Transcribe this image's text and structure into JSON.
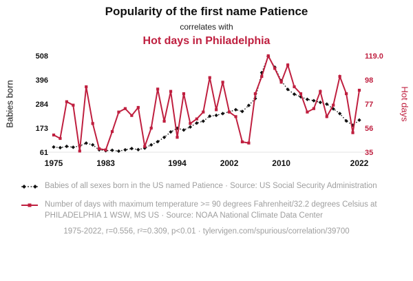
{
  "colors": {
    "accent": "#bf1f3f",
    "black": "#111111",
    "gray": "#9e9e9e"
  },
  "chart_data": {
    "type": "line",
    "title": "Popularity of the first name Patience",
    "subtitle": "correlates with",
    "title2": "Hot days in Philadelphia",
    "x": [
      1975,
      1976,
      1977,
      1978,
      1979,
      1980,
      1981,
      1982,
      1983,
      1984,
      1985,
      1986,
      1987,
      1988,
      1989,
      1990,
      1991,
      1992,
      1993,
      1994,
      1995,
      1996,
      1997,
      1998,
      1999,
      2000,
      2001,
      2002,
      2003,
      2004,
      2005,
      2006,
      2007,
      2008,
      2009,
      2010,
      2011,
      2012,
      2013,
      2014,
      2015,
      2016,
      2017,
      2018,
      2019,
      2020,
      2021,
      2022
    ],
    "x_ticks": [
      1975,
      1983,
      1994,
      2002,
      2010,
      2022
    ],
    "left_axis": {
      "label": "Babies born",
      "ticks": [
        61,
        173,
        284,
        396,
        508
      ],
      "range": [
        61,
        508
      ]
    },
    "right_axis": {
      "label": "Hot days",
      "ticks": [
        "35",
        "56",
        "77",
        "98",
        "119.0"
      ],
      "tick_values": [
        35,
        56,
        77,
        98,
        119
      ],
      "range": [
        35,
        119
      ]
    },
    "series": [
      {
        "name": "Babies of all sexes born in the US named Patience",
        "axis": "left",
        "color": "#111111",
        "style": "dotted-diamond",
        "values": [
          85,
          82,
          88,
          84,
          90,
          103,
          95,
          72,
          68,
          70,
          66,
          72,
          78,
          73,
          80,
          95,
          110,
          130,
          155,
          172,
          164,
          178,
          196,
          205,
          228,
          232,
          240,
          248,
          258,
          250,
          278,
          310,
          430,
          505,
          455,
          392,
          352,
          330,
          318,
          306,
          300,
          292,
          284,
          262,
          240,
          206,
          186,
          210
        ]
      },
      {
        "name": "Number of days with maximum temperature >= 90 degrees Fahrenheit at PHILADELPHIA 1 WSW, MS US",
        "axis": "right",
        "color": "#bf1f3f",
        "style": "solid-square",
        "values": [
          50,
          47,
          79,
          76,
          36,
          92,
          60,
          38,
          37,
          53,
          70,
          73,
          67,
          74,
          40,
          56,
          90,
          62,
          88,
          48,
          86,
          60,
          64,
          70,
          100,
          72,
          96,
          70,
          66,
          44,
          43,
          86,
          101,
          119,
          108,
          96,
          111,
          92,
          86,
          70,
          73,
          88,
          66,
          76,
          101,
          86,
          52,
          89
        ]
      }
    ]
  },
  "legend": [
    {
      "label": "Babies of all sexes born in the US named Patience · Source: US Social Security Administration"
    },
    {
      "label": "Number of days with maximum temperature >= 90 degrees Fahrenheit/32.2 degrees Celsius at PHILADELPHIA 1 WSW, MS US · Source: NOAA National Climate Data Center"
    }
  ],
  "footer": "1975-2022, r=0.556, r²=0.309, p<0.01 · tylervigen.com/spurious/correlation/39700"
}
